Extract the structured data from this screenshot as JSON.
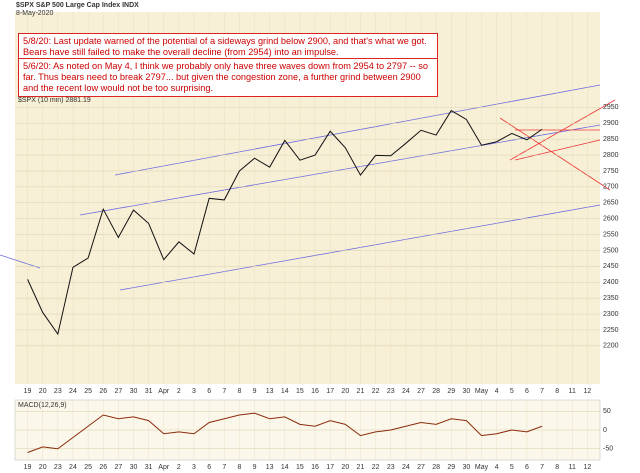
{
  "chart_data": [
    {
      "type": "line",
      "title": "$SPX S&P 500 Large Cap Index INDX",
      "subtitle": "8-May-2020",
      "annotations": [
        "5/8/20:  Last update warned of the potential of a sideways grind below 2900, and that's what we got.  Bears have still failed to make the overall decline (from 2954) into an impulse.",
        "5/6/20:  As noted on May 4, I think we probably only have three waves down from 2954 to 2797 -- so far.  Thus bears need to break 2797... but given the congestion zone, a further grind between 2900 and the recent low would not be too surprising."
      ],
      "categories": [
        "19",
        "20",
        "23",
        "24",
        "25",
        "26",
        "27",
        "30",
        "31",
        "Apr",
        "2",
        "3",
        "6",
        "7",
        "8",
        "9",
        "13",
        "14",
        "15",
        "16",
        "17",
        "20",
        "21",
        "22",
        "23",
        "24",
        "27",
        "28",
        "29",
        "30",
        "May",
        "4",
        "5",
        "6",
        "7",
        "8",
        "11",
        "12"
      ],
      "series": [
        {
          "name": "$SPX (10 min) 2881.19",
          "color": "#111111",
          "values": [
            2409,
            2305,
            2237,
            2447,
            2476,
            2630,
            2541,
            2627,
            2585,
            2471,
            2527,
            2489,
            2664,
            2659,
            2750,
            2790,
            2762,
            2846,
            2784,
            2800,
            2875,
            2823,
            2737,
            2799,
            2798,
            2837,
            2878,
            2863,
            2940,
            2912,
            2831,
            2842,
            2868,
            2848,
            2881.19,
            null,
            null,
            null
          ]
        }
      ],
      "ylim": [
        2080,
        3250
      ],
      "yticks": [
        2200,
        2250,
        2300,
        2350,
        2400,
        2450,
        2500,
        2550,
        2600,
        2650,
        2700,
        2750,
        2800,
        2850,
        2900,
        2950
      ]
    },
    {
      "type": "line",
      "title": "MACD(12,26,9)",
      "categories": [
        "19",
        "20",
        "23",
        "24",
        "25",
        "26",
        "27",
        "30",
        "31",
        "Apr",
        "2",
        "3",
        "6",
        "7",
        "8",
        "9",
        "13",
        "14",
        "15",
        "16",
        "17",
        "20",
        "21",
        "22",
        "23",
        "24",
        "27",
        "28",
        "29",
        "30",
        "May",
        "4",
        "5",
        "6",
        "7",
        "8",
        "11",
        "12"
      ],
      "series": [
        {
          "name": "MACD",
          "color": "#8b2b0b",
          "values": [
            -60,
            -45,
            -50,
            -20,
            10,
            40,
            30,
            35,
            25,
            -10,
            -5,
            -10,
            20,
            30,
            40,
            45,
            30,
            35,
            15,
            10,
            25,
            15,
            -15,
            -5,
            0,
            10,
            20,
            15,
            30,
            25,
            -15,
            -10,
            0,
            -5,
            10,
            null,
            null,
            null
          ]
        }
      ],
      "ylim": [
        -80,
        80
      ],
      "yticks": [
        -50,
        0,
        50
      ]
    }
  ]
}
